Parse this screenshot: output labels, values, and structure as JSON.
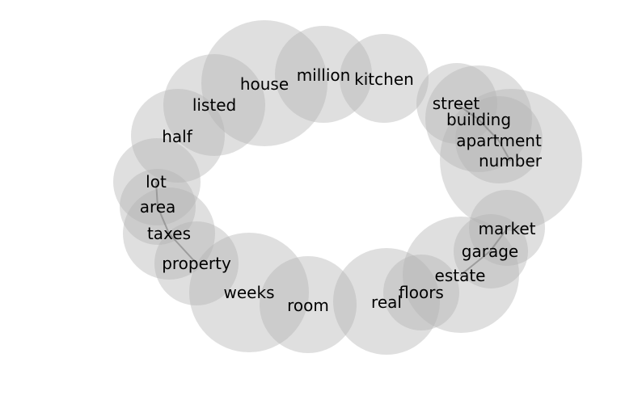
{
  "diagram": {
    "type": "word-bubble-ring",
    "colors": {
      "bubble": "#b3b3b3",
      "link": "#8c8c8c",
      "text": "#000000",
      "background": "#ffffff"
    },
    "words": [
      {
        "id": "house",
        "label": "house"
      },
      {
        "id": "million",
        "label": "million"
      },
      {
        "id": "kitchen",
        "label": "kitchen"
      },
      {
        "id": "street",
        "label": "street"
      },
      {
        "id": "building",
        "label": "building"
      },
      {
        "id": "apartment",
        "label": "apartment"
      },
      {
        "id": "number",
        "label": "number"
      },
      {
        "id": "market",
        "label": "market"
      },
      {
        "id": "garage",
        "label": "garage"
      },
      {
        "id": "estate",
        "label": "estate"
      },
      {
        "id": "floors",
        "label": "floors"
      },
      {
        "id": "real",
        "label": "real"
      },
      {
        "id": "room",
        "label": "room"
      },
      {
        "id": "weeks",
        "label": "weeks"
      },
      {
        "id": "property",
        "label": "property"
      },
      {
        "id": "taxes",
        "label": "taxes"
      },
      {
        "id": "area",
        "label": "area"
      },
      {
        "id": "lot",
        "label": "lot"
      },
      {
        "id": "half",
        "label": "half"
      },
      {
        "id": "listed",
        "label": "listed"
      }
    ],
    "links": [
      [
        "lot",
        "area"
      ],
      [
        "area",
        "taxes"
      ],
      [
        "taxes",
        "property"
      ],
      [
        "street",
        "building"
      ],
      [
        "building",
        "apartment"
      ],
      [
        "apartment",
        "number"
      ],
      [
        "market",
        "garage"
      ],
      [
        "garage",
        "estate"
      ]
    ]
  }
}
